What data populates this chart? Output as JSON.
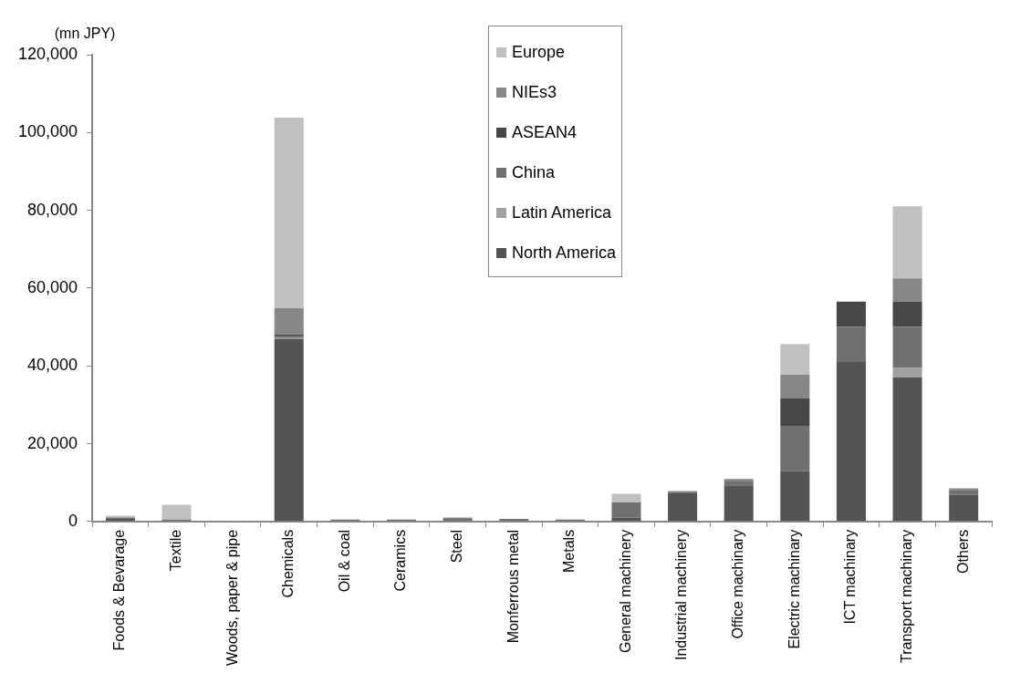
{
  "chart_data": {
    "type": "bar",
    "stacked": true,
    "ylabel": "(mn JPY)",
    "categories": [
      "Foods & Bevarage",
      "Textile",
      "Woods, paper & pipe",
      "Chemicals",
      "Oil & coal",
      "Ceramics",
      "Steel",
      "Monferrous metal",
      "Metals",
      "General machinery",
      "Industrial machinery",
      "Office machinary",
      "Electric machinary",
      "ICT machinary",
      "Transport machinary",
      "Others"
    ],
    "series": [
      {
        "name": "North America",
        "color": "#545454",
        "values": [
          700,
          0,
          0,
          47000,
          0,
          0,
          0,
          0,
          0,
          1000,
          7400,
          9300,
          13000,
          41000,
          37000,
          6800
        ]
      },
      {
        "name": "Latin America",
        "color": "#a0a0a0",
        "values": [
          0,
          0,
          0,
          300,
          0,
          0,
          0,
          0,
          0,
          0,
          0,
          0,
          0,
          0,
          2500,
          0
        ]
      },
      {
        "name": "China",
        "color": "#707070",
        "values": [
          300,
          500,
          0,
          500,
          500,
          500,
          700,
          700,
          500,
          3900,
          0,
          1000,
          11400,
          9000,
          10500,
          1300
        ]
      },
      {
        "name": "ASEAN4",
        "color": "#474747",
        "values": [
          0,
          0,
          0,
          300,
          0,
          0,
          0,
          0,
          0,
          0,
          0,
          0,
          7200,
          6500,
          6500,
          0
        ]
      },
      {
        "name": "NIEs3",
        "color": "#878787",
        "values": [
          0,
          0,
          0,
          6700,
          0,
          0,
          300,
          0,
          0,
          0,
          400,
          600,
          6200,
          0,
          6000,
          400
        ]
      },
      {
        "name": "Europe",
        "color": "#c0c0c0",
        "values": [
          500,
          3800,
          0,
          49000,
          0,
          0,
          0,
          0,
          0,
          2200,
          0,
          0,
          7800,
          0,
          18500,
          0
        ]
      }
    ],
    "ylim": [
      0,
      120000
    ],
    "yticks": [
      {
        "value": 0,
        "label": "0"
      },
      {
        "value": 20000,
        "label": "20,000"
      },
      {
        "value": 40000,
        "label": "40,000"
      },
      {
        "value": 60000,
        "label": "60,000"
      },
      {
        "value": 80000,
        "label": "80,000"
      },
      {
        "value": 100000,
        "label": "100,000"
      },
      {
        "value": 120000,
        "label": "120,000"
      }
    ],
    "legend": "top right"
  }
}
